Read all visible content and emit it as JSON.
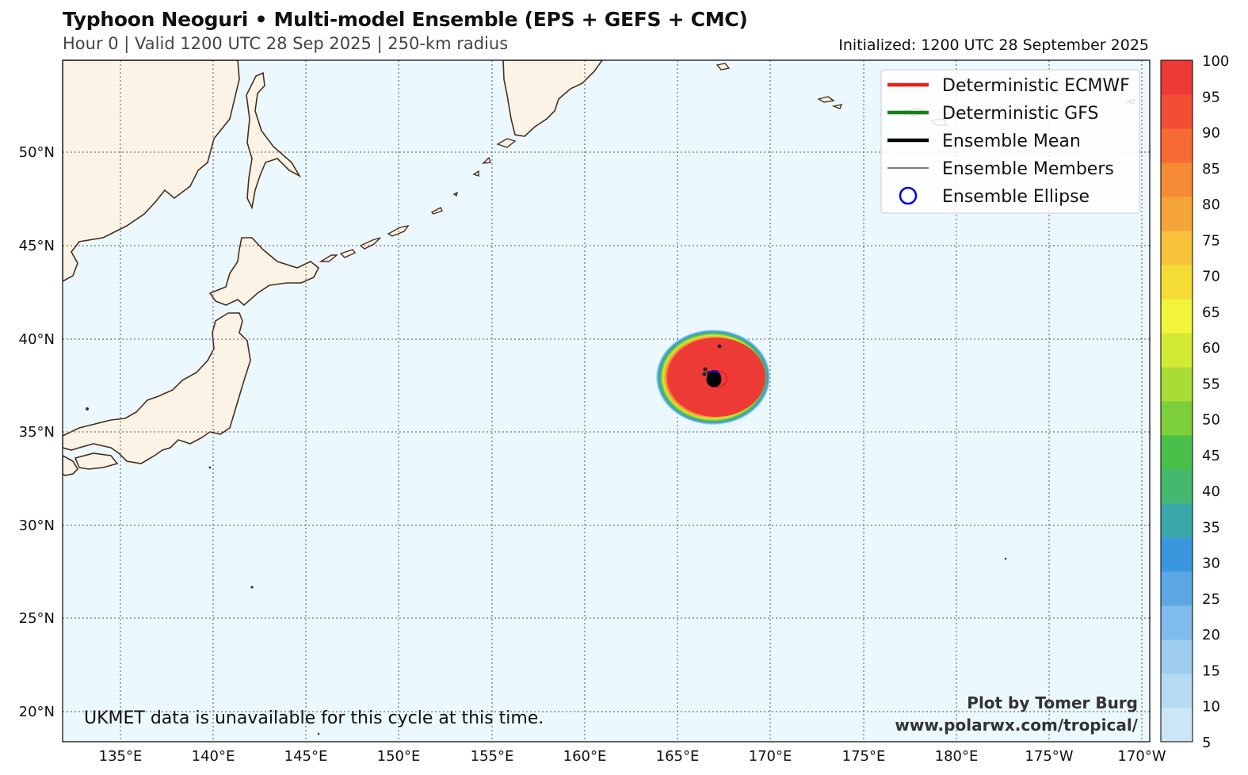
{
  "header": {
    "title": "Typhoon Neoguri • Multi-model Ensemble (EPS + GEFS + CMC)",
    "subtitle": "Hour 0 | Valid 1200 UTC 28 Sep 2025 | 250-km radius",
    "initialized": "Initialized: 1200 UTC 28 September 2025"
  },
  "map": {
    "ocean_color": "#ebf8fd",
    "land_color": "#fcf3e7",
    "coast_color": "#4a2e1a",
    "lon_labels": [
      "135°E",
      "140°E",
      "145°E",
      "150°E",
      "155°E",
      "160°E",
      "165°E",
      "170°E",
      "175°E",
      "180°E",
      "175°W",
      "170°W"
    ],
    "lat_labels": [
      "50°N",
      "45°N",
      "40°N",
      "35°N",
      "30°N",
      "25°N",
      "20°N"
    ],
    "storm": {
      "lon": 167.0,
      "lat": 37.9,
      "probability_max": 100
    }
  },
  "legend": {
    "items": [
      {
        "label": "Deterministic ECMWF",
        "color": "#e8201a",
        "style": "thick"
      },
      {
        "label": "Deterministic GFS",
        "color": "#1a7d1a",
        "style": "thick"
      },
      {
        "label": "Ensemble Mean",
        "color": "#000000",
        "style": "thick"
      },
      {
        "label": "Ensemble Members",
        "color": "#000000",
        "style": "thin"
      },
      {
        "label": "Ensemble Ellipse",
        "color": "#0000dd",
        "style": "circle"
      }
    ]
  },
  "colorbar": {
    "ticks": [
      "5",
      "10",
      "15",
      "20",
      "25",
      "30",
      "35",
      "40",
      "45",
      "50",
      "55",
      "60",
      "65",
      "70",
      "75",
      "80",
      "85",
      "90",
      "95",
      "100"
    ],
    "colors": [
      "#cde6f7",
      "#b7daf3",
      "#9ecdf0",
      "#7fbbeb",
      "#5da8e4",
      "#3b97dd",
      "#3aa8a8",
      "#45b86f",
      "#4ac04b",
      "#7ccf3a",
      "#a8dd35",
      "#d3ea35",
      "#f2f43a",
      "#f5db35",
      "#f7c13a",
      "#f5a538",
      "#f68a35",
      "#f66b34",
      "#f34e34",
      "#ee3a36"
    ]
  },
  "notes": {
    "ukmet": "UKMET data is unavailable for this cycle at this time.",
    "credit_line1": "Plot by Tomer Burg",
    "credit_line2": "www.polarwx.com/tropical/"
  }
}
